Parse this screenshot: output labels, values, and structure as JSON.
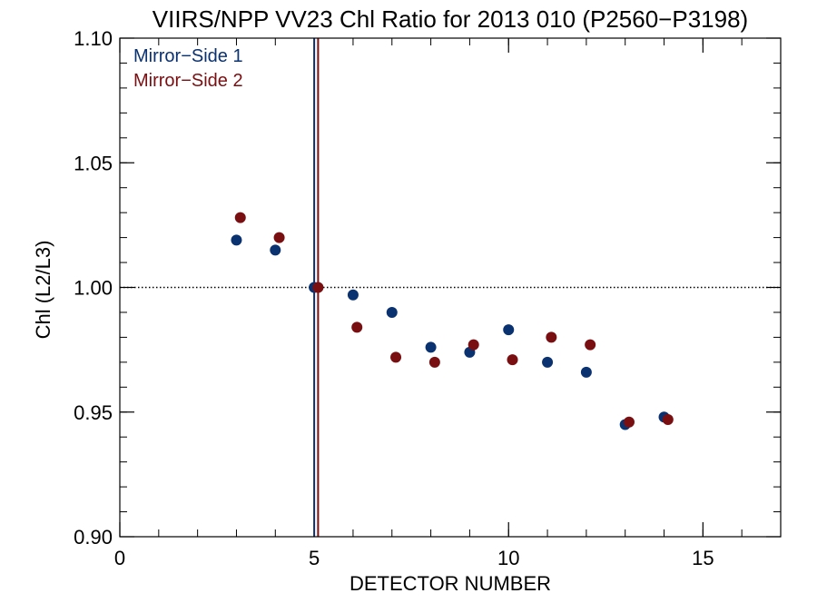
{
  "chart_data": {
    "type": "scatter",
    "title": "VIIRS/NPP VV23 Chl Ratio for 2013 010 (P2560−P3198)",
    "xlabel": "DETECTOR NUMBER",
    "ylabel": "Chl (L2/L3)",
    "xlim": [
      0,
      17
    ],
    "ylim": [
      0.9,
      1.1
    ],
    "xticks": [
      0,
      5,
      10,
      15
    ],
    "xtick_labels": [
      "0",
      "5",
      "10",
      "15"
    ],
    "yticks": [
      0.9,
      0.95,
      1.0,
      1.05,
      1.1
    ],
    "ytick_labels": [
      "0.90",
      "0.95",
      "1.00",
      "1.05",
      "1.10"
    ],
    "x_minor_step": 1,
    "y_minor_step": 0.01,
    "grid": false,
    "legend_position": "top-left",
    "reference_line_y": 1.0,
    "vertical_lines": [
      {
        "x": 5.0,
        "color": "#0b2d6b"
      },
      {
        "x": 5.1,
        "color": "#7a0f12"
      }
    ],
    "series": [
      {
        "name": "Mirror−Side 1",
        "color": "#0b3270",
        "x": [
          3,
          4,
          5,
          6,
          7,
          8,
          9,
          10,
          11,
          12,
          13,
          14
        ],
        "y": [
          1.019,
          1.015,
          1.0,
          0.997,
          0.99,
          0.976,
          0.974,
          0.983,
          0.97,
          0.966,
          0.945,
          0.948
        ]
      },
      {
        "name": "Mirror−Side 2",
        "color": "#7a0f12",
        "x": [
          3.1,
          4.1,
          5.1,
          6.1,
          7.1,
          8.1,
          9.1,
          10.1,
          11.1,
          12.1,
          13.1,
          14.1
        ],
        "y": [
          1.028,
          1.02,
          1.0,
          0.984,
          0.972,
          0.97,
          0.977,
          0.971,
          0.98,
          0.977,
          0.946,
          0.947
        ]
      }
    ]
  }
}
